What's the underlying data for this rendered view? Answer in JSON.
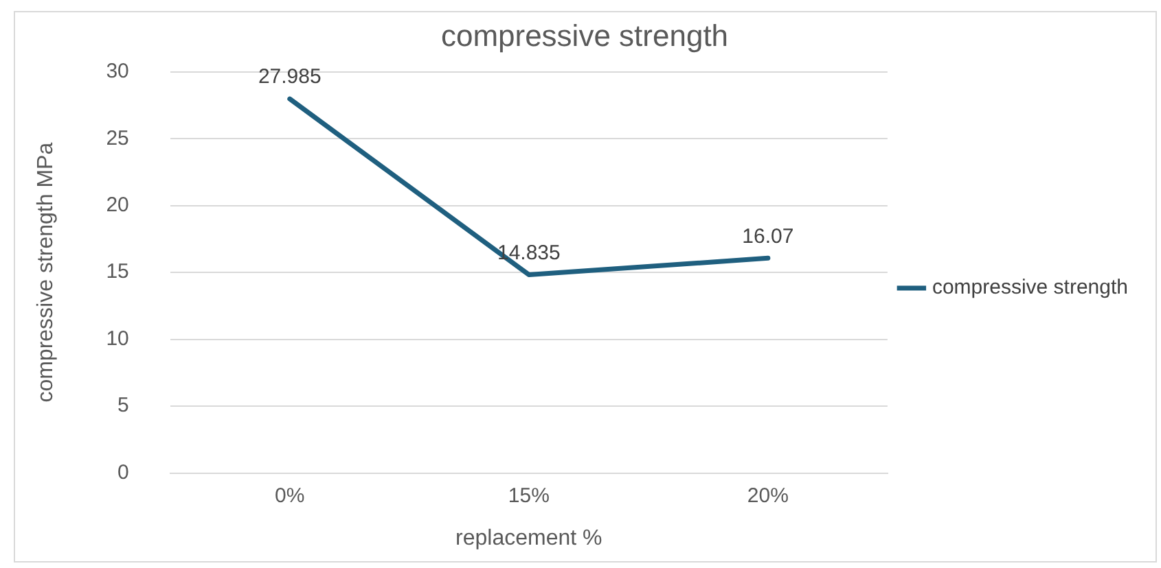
{
  "chart_data": {
    "type": "line",
    "title": "compressive strength",
    "xlabel": "replacement %",
    "ylabel": "compressive strength MPa",
    "categories": [
      "0%",
      "15%",
      "20%"
    ],
    "series": [
      {
        "name": "compressive strength",
        "color": "#1f5f7f",
        "values": [
          27.985,
          14.835,
          16.07
        ]
      }
    ],
    "ylim": [
      0,
      30
    ],
    "yticks": [
      0,
      5,
      10,
      15,
      20,
      25,
      30
    ],
    "grid": "y",
    "legend": "right",
    "data_labels": true,
    "marker": "none",
    "line_style": "solid"
  }
}
